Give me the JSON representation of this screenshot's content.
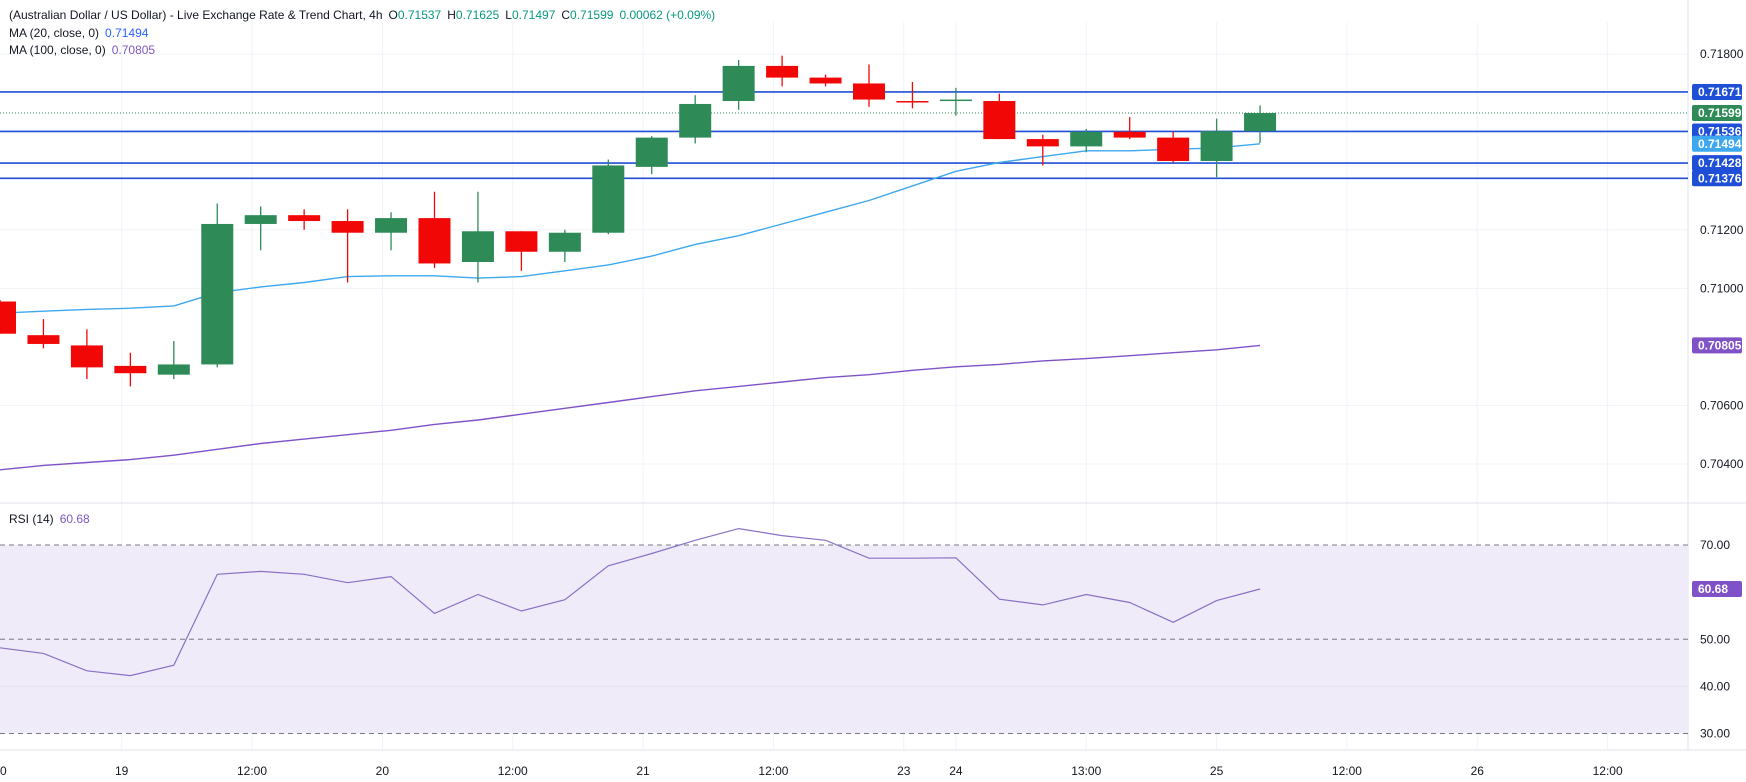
{
  "header": {
    "title": "(Australian Dollar / US Dollar) - Live Exchange Rate & Trend Chart, 4h",
    "ohlc": [
      {
        "label": "O",
        "value": "0.71537"
      },
      {
        "label": "H",
        "value": "0.71625"
      },
      {
        "label": "L",
        "value": "0.71497"
      },
      {
        "label": "C",
        "value": "0.71599"
      }
    ],
    "change": "0.00062 (+0.09%)",
    "ma20_label": "MA (20, close, 0)",
    "ma20_value": "0.71494",
    "ma100_label": "MA (100, close, 0)",
    "ma100_value": "0.70805",
    "rsi_label": "RSI (14)",
    "rsi_value": "60.68"
  },
  "colors": {
    "up": "#2e8b57",
    "down": "#f20707",
    "ma20": "#3da8ef",
    "ma100": "#8052c7",
    "rsi": "#8a70c4",
    "hline": "#1f4fd6",
    "rsi_band": "#efebf9",
    "price_tag": "#2e8b57"
  },
  "chart_data": [
    {
      "type": "candlestick",
      "title": "(Australian Dollar / US Dollar) - Live Exchange Rate & Trend Chart, 4h",
      "ylim": [
        0.7027,
        0.7191
      ],
      "y_ticks": [
        "0.71800",
        "0.71200",
        "0.71000",
        "0.70600",
        "0.70400"
      ],
      "x_ticks": [
        {
          "i": -0.04,
          "label": "0"
        },
        {
          "i": 2.8,
          "label": "19"
        },
        {
          "i": 5.8,
          "label": "12:00"
        },
        {
          "i": 8.8,
          "label": "20"
        },
        {
          "i": 11.8,
          "label": "12:00"
        },
        {
          "i": 14.8,
          "label": "21"
        },
        {
          "i": 17.8,
          "label": "12:00"
        },
        {
          "i": 20.8,
          "label": "23"
        },
        {
          "i": 22.0,
          "label": "24"
        },
        {
          "i": 25.0,
          "label": "13:00"
        },
        {
          "i": 28.0,
          "label": "25"
        },
        {
          "i": 31.0,
          "label": "12:00"
        },
        {
          "i": 34.0,
          "label": "26"
        },
        {
          "i": 37.0,
          "label": "12:00"
        }
      ],
      "candles": [
        {
          "o": 0.70955,
          "h": 0.7096,
          "l": 0.70845,
          "c": 0.70845
        },
        {
          "o": 0.7084,
          "h": 0.70895,
          "l": 0.70795,
          "c": 0.7081
        },
        {
          "o": 0.70805,
          "h": 0.7086,
          "l": 0.7069,
          "c": 0.7073
        },
        {
          "o": 0.70735,
          "h": 0.7078,
          "l": 0.70665,
          "c": 0.7071
        },
        {
          "o": 0.70705,
          "h": 0.7082,
          "l": 0.7069,
          "c": 0.7074
        },
        {
          "o": 0.7074,
          "h": 0.7129,
          "l": 0.7073,
          "c": 0.7122
        },
        {
          "o": 0.7122,
          "h": 0.7128,
          "l": 0.7113,
          "c": 0.7125
        },
        {
          "o": 0.7125,
          "h": 0.7127,
          "l": 0.712,
          "c": 0.7123
        },
        {
          "o": 0.7123,
          "h": 0.7127,
          "l": 0.7102,
          "c": 0.7119
        },
        {
          "o": 0.7119,
          "h": 0.7126,
          "l": 0.7113,
          "c": 0.7124
        },
        {
          "o": 0.7124,
          "h": 0.7133,
          "l": 0.7107,
          "c": 0.71085
        },
        {
          "o": 0.7109,
          "h": 0.7133,
          "l": 0.7102,
          "c": 0.71195
        },
        {
          "o": 0.71195,
          "h": 0.71195,
          "l": 0.7106,
          "c": 0.71125
        },
        {
          "o": 0.71125,
          "h": 0.712,
          "l": 0.7109,
          "c": 0.7119
        },
        {
          "o": 0.7119,
          "h": 0.7144,
          "l": 0.71185,
          "c": 0.7142
        },
        {
          "o": 0.71415,
          "h": 0.7152,
          "l": 0.7139,
          "c": 0.71515
        },
        {
          "o": 0.71515,
          "h": 0.7166,
          "l": 0.71495,
          "c": 0.7163
        },
        {
          "o": 0.7164,
          "h": 0.7178,
          "l": 0.7161,
          "c": 0.7176
        },
        {
          "o": 0.7176,
          "h": 0.71795,
          "l": 0.7169,
          "c": 0.7172
        },
        {
          "o": 0.7172,
          "h": 0.7173,
          "l": 0.7169,
          "c": 0.717
        },
        {
          "o": 0.717,
          "h": 0.71765,
          "l": 0.7162,
          "c": 0.71645
        },
        {
          "o": 0.7164,
          "h": 0.71705,
          "l": 0.71615,
          "c": 0.71638
        },
        {
          "o": 0.7164,
          "h": 0.71685,
          "l": 0.7159,
          "c": 0.71645
        },
        {
          "o": 0.7164,
          "h": 0.71665,
          "l": 0.7151,
          "c": 0.7151
        },
        {
          "o": 0.7151,
          "h": 0.71525,
          "l": 0.7142,
          "c": 0.71485
        },
        {
          "o": 0.71485,
          "h": 0.71545,
          "l": 0.71465,
          "c": 0.71535
        },
        {
          "o": 0.71535,
          "h": 0.71585,
          "l": 0.7151,
          "c": 0.71515
        },
        {
          "o": 0.71515,
          "h": 0.71535,
          "l": 0.7143,
          "c": 0.71435
        },
        {
          "o": 0.71435,
          "h": 0.7158,
          "l": 0.7138,
          "c": 0.71537
        },
        {
          "o": 0.71537,
          "h": 0.71625,
          "l": 0.71497,
          "c": 0.71599
        }
      ],
      "ma20": [
        0.70915,
        0.70922,
        0.70928,
        0.70932,
        0.7094,
        0.70985,
        0.71005,
        0.7102,
        0.7104,
        0.71043,
        0.71043,
        0.71035,
        0.7104,
        0.7106,
        0.7108,
        0.7111,
        0.7115,
        0.7118,
        0.7122,
        0.7126,
        0.713,
        0.7135,
        0.714,
        0.7143,
        0.7145,
        0.7147,
        0.7147,
        0.71475,
        0.7148,
        0.71494
      ],
      "ma100": [
        0.7038,
        0.70395,
        0.70405,
        0.70415,
        0.7043,
        0.7045,
        0.7047,
        0.70485,
        0.705,
        0.70515,
        0.70535,
        0.7055,
        0.7057,
        0.7059,
        0.7061,
        0.7063,
        0.7065,
        0.70665,
        0.7068,
        0.70695,
        0.70705,
        0.7072,
        0.70732,
        0.7074,
        0.70752,
        0.7076,
        0.7077,
        0.7078,
        0.7079,
        0.70805
      ],
      "horizontal_levels": [
        "0.71671",
        "0.71536",
        "0.71428",
        "0.71376"
      ],
      "last_price": "0.71599"
    },
    {
      "type": "line",
      "title": "RSI (14)",
      "ylim": [
        26.5,
        78.5
      ],
      "y_ticks": [
        "70.00",
        "50.00",
        "40.00",
        "30.00"
      ],
      "dashed_levels": [
        70,
        50,
        30
      ],
      "band": [
        30,
        70
      ],
      "values": [
        48.2,
        47.0,
        43.3,
        42.3,
        44.5,
        63.8,
        64.4,
        63.8,
        62.0,
        63.3,
        55.5,
        59.5,
        56.0,
        58.4,
        65.6,
        68.2,
        71.0,
        73.5,
        72.0,
        71.0,
        67.2,
        67.2,
        67.3,
        58.5,
        57.3,
        59.5,
        57.8,
        53.6,
        58.2,
        60.68
      ],
      "last_value": "60.68"
    }
  ]
}
